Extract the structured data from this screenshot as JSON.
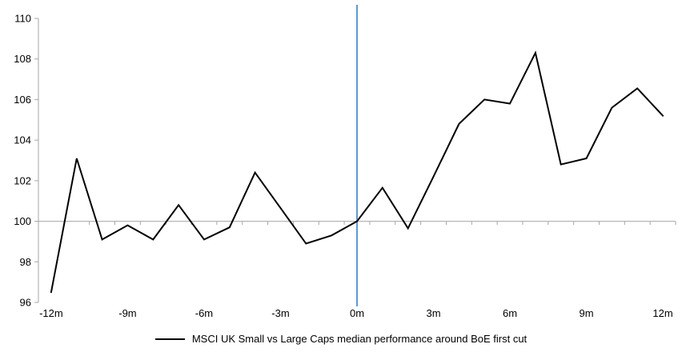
{
  "chart_data": {
    "type": "line",
    "title": "",
    "xlabel": "",
    "ylabel": "",
    "x": [
      -12,
      -11,
      -10,
      -9,
      -8,
      -7,
      -6,
      -5,
      -4,
      -3,
      -2,
      -1,
      0,
      1,
      2,
      3,
      4,
      5,
      6,
      7,
      8,
      9,
      10,
      11,
      12
    ],
    "series": [
      {
        "name": "MSCI UK Small vs Large Caps median performance around BoE first cut",
        "color": "#000000",
        "values": [
          96.5,
          103.1,
          99.1,
          99.8,
          99.1,
          100.8,
          99.1,
          99.7,
          102.4,
          100.65,
          98.9,
          99.3,
          100.0,
          101.65,
          99.65,
          102.2,
          104.8,
          106.0,
          105.8,
          108.3,
          102.8,
          103.1,
          105.6,
          106.55,
          105.2
        ]
      }
    ],
    "x_tick_labels": [
      "-12m",
      "-9m",
      "-6m",
      "-3m",
      "0m",
      "3m",
      "6m",
      "9m",
      "12m"
    ],
    "x_ticks_at": [
      -12,
      -9,
      -6,
      -3,
      0,
      3,
      6,
      9,
      12
    ],
    "y_ticks": [
      96,
      98,
      100,
      102,
      104,
      106,
      108,
      110
    ],
    "ylim": [
      96,
      110
    ],
    "x_axis_crosses_at_y": 100,
    "event_line_at_x": 0,
    "legend_position": "bottom-center",
    "grid": "off",
    "colors": {
      "series_line": "#000000",
      "event_line": "#5B9BD5",
      "axis": "#A6A6A6",
      "tick_text": "#000000",
      "background": "#FFFFFF"
    }
  }
}
